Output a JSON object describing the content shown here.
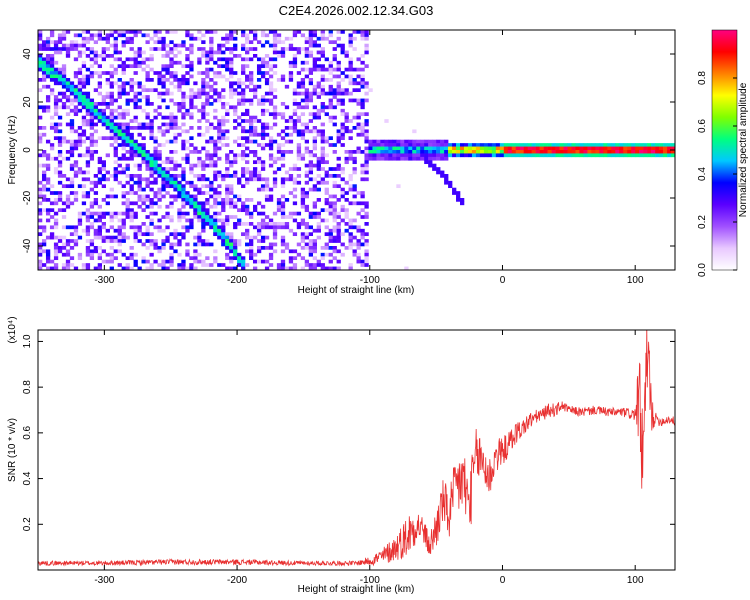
{
  "title": "C2E4.2026.002.12.34.G03",
  "chart_data": [
    {
      "type": "heatmap",
      "xlabel": "Height of straight line (km)",
      "ylabel": "Frequency (Hz)",
      "xlim": [
        -350,
        130
      ],
      "ylim": [
        -50,
        50
      ],
      "x_ticks": [
        -300,
        -200,
        -100,
        0,
        100
      ],
      "y_ticks": [
        -40,
        -20,
        0,
        20,
        40
      ],
      "colorbar": {
        "label": "Normalized spectral amplitude",
        "range": [
          0,
          1
        ],
        "ticks": [
          "0.0",
          "0.2",
          "0.4",
          "0.6",
          "0.8"
        ],
        "colors": [
          "#ffffff",
          "#e8c8ff",
          "#a050ff",
          "#5a00ff",
          "#0000ff",
          "#00c8ff",
          "#00ff80",
          "#80ff00",
          "#ffff00",
          "#ff8000",
          "#ff0000",
          "#ff0080"
        ]
      },
      "features": {
        "diagonal_track": {
          "x": [
            -350,
            -330,
            -300,
            -270,
            -240,
            -210,
            -195
          ],
          "y": [
            37,
            28,
            13,
            -2,
            -18,
            -36,
            -48
          ]
        },
        "ridge_zero_freq": {
          "x": [
            -100,
            -60,
            -20,
            0,
            50,
            100,
            130
          ],
          "y": [
            0,
            0,
            0,
            0,
            0,
            0,
            0
          ]
        },
        "secondary_branch": {
          "x": [
            -60,
            -45,
            -30
          ],
          "y": [
            -3,
            -10,
            -22
          ]
        },
        "noise_region_x": [
          -350,
          -100
        ]
      }
    },
    {
      "type": "line",
      "xlabel": "Height of straight line (km)",
      "ylabel": "SNR (10 * v/v)",
      "scale_note": "(x10⁴)",
      "xlim": [
        -350,
        130
      ],
      "ylim": [
        0,
        1.05
      ],
      "x_ticks": [
        -300,
        -200,
        -100,
        0,
        100
      ],
      "y_ticks": [
        0.2,
        0.4,
        0.6,
        0.8,
        1.0
      ],
      "series": [
        {
          "color": "#e83030",
          "x": [
            -350,
            -300,
            -250,
            -200,
            -150,
            -110,
            -100,
            -90,
            -80,
            -70,
            -65,
            -60,
            -55,
            -50,
            -45,
            -40,
            -35,
            -30,
            -25,
            -20,
            -15,
            -10,
            -5,
            0,
            5,
            10,
            15,
            20,
            25,
            30,
            35,
            40,
            45,
            50,
            60,
            70,
            80,
            90,
            100,
            103,
            106,
            108,
            110,
            112,
            115,
            120,
            125,
            130
          ],
          "y": [
            0.03,
            0.03,
            0.035,
            0.035,
            0.03,
            0.03,
            0.04,
            0.06,
            0.1,
            0.16,
            0.2,
            0.18,
            0.1,
            0.18,
            0.3,
            0.24,
            0.36,
            0.4,
            0.28,
            0.5,
            0.48,
            0.4,
            0.5,
            0.52,
            0.55,
            0.6,
            0.62,
            0.65,
            0.67,
            0.68,
            0.7,
            0.7,
            0.72,
            0.7,
            0.69,
            0.7,
            0.69,
            0.69,
            0.68,
            0.75,
            0.45,
            0.8,
            0.95,
            0.7,
            0.66,
            0.65,
            0.66,
            0.65
          ],
          "noise": [
            0.01,
            0.01,
            0.012,
            0.012,
            0.01,
            0.01,
            0.02,
            0.04,
            0.06,
            0.1,
            0.08,
            0.06,
            0.05,
            0.1,
            0.1,
            0.12,
            0.14,
            0.16,
            0.15,
            0.12,
            0.12,
            0.1,
            0.08,
            0.06,
            0.06,
            0.05,
            0.04,
            0.04,
            0.03,
            0.03,
            0.03,
            0.03,
            0.02,
            0.02,
            0.02,
            0.02,
            0.02,
            0.02,
            0.03,
            0.2,
            0.25,
            0.25,
            0.2,
            0.1,
            0.03,
            0.02,
            0.02,
            0.02
          ]
        }
      ]
    }
  ]
}
